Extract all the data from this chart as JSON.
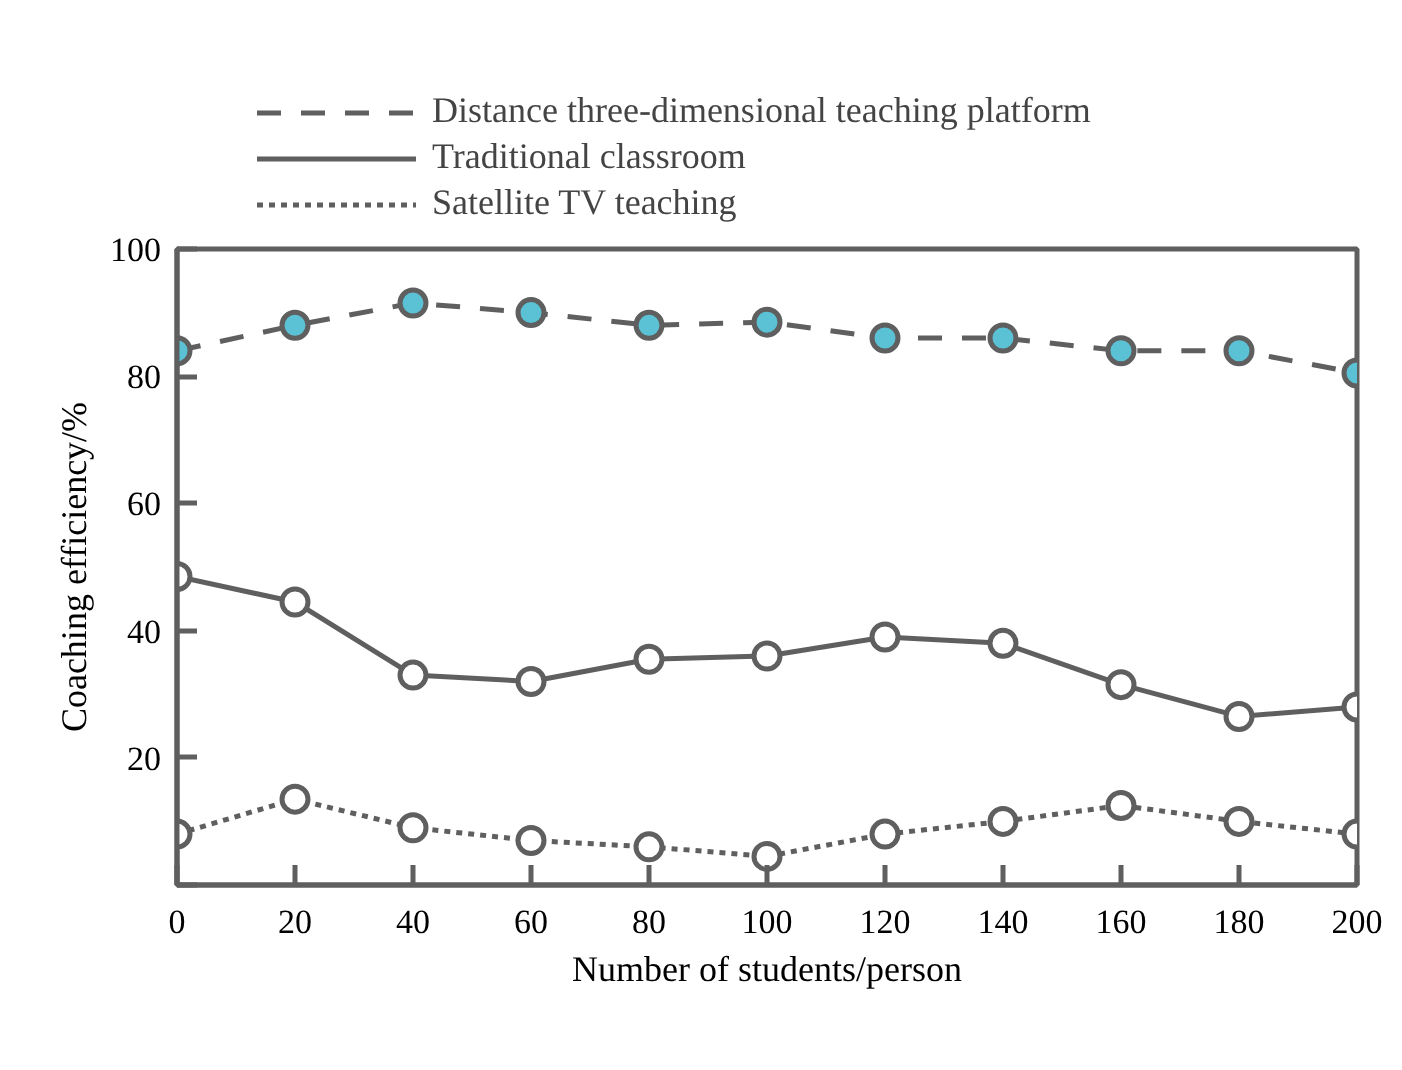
{
  "chart_data": {
    "type": "line",
    "xlabel": "Number of students/person",
    "ylabel": "Coaching efficiency/%",
    "x": [
      0,
      20,
      40,
      60,
      80,
      100,
      120,
      140,
      160,
      180,
      200
    ],
    "xlim": [
      0,
      200
    ],
    "xticks": [
      0,
      20,
      40,
      60,
      80,
      100,
      120,
      140,
      160,
      180,
      200
    ],
    "ylim": [
      0,
      100
    ],
    "yticks": [
      {
        "value": 0,
        "label": null
      },
      20,
      40,
      60,
      80,
      100
    ],
    "grid": false,
    "legend": "top",
    "marker": "circle",
    "series": [
      {
        "name": "Distance three-dimensional teaching platform",
        "color": "#5f5f5f",
        "line_style": "dashed",
        "colors": [
          "#5bc2d6",
          "#5bc2d6",
          "#5bc2d6",
          "#5bc2d6",
          "#5bc2d6",
          "#5bc2d6",
          "#5bc2d6",
          "#5bc2d6",
          "#5bc2d6",
          "#5bc2d6",
          "#5bc2d6"
        ],
        "values": [
          84,
          88,
          91.5,
          90,
          88,
          88.5,
          86,
          86,
          84,
          84,
          80.5
        ]
      },
      {
        "name": "Traditional classroom",
        "color": "#5f5f5f",
        "line_style": "solid",
        "colors": [
          "#ffffff",
          "#ffffff",
          "#ffffff",
          "#ffffff",
          "#ffffff",
          "#ffffff",
          "#ffffff",
          "#ffffff",
          "#ffffff",
          "#ffffff",
          "#ffffff"
        ],
        "values": [
          48.5,
          44.5,
          33,
          32,
          35.5,
          36,
          39,
          38,
          31.5,
          26.5,
          28
        ]
      },
      {
        "name": "Satellite TV teaching",
        "color": "#5f5f5f",
        "line_style": "dotted",
        "colors": [
          "#ffffff",
          "#ffffff",
          "#ffffff",
          "#ffffff",
          "#ffffff",
          "#ffffff",
          "#ffffff",
          "#ffffff",
          "#ffffff",
          "#ffffff",
          "#ffffff"
        ],
        "values": [
          8,
          13.5,
          9,
          7,
          6,
          4.5,
          8,
          10,
          12.5,
          10,
          8
        ]
      }
    ]
  }
}
